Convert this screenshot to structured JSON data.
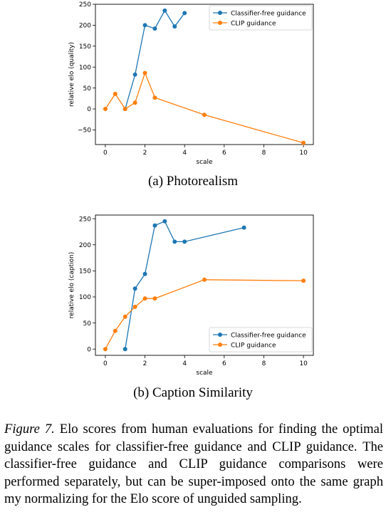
{
  "charts_meta": {
    "colors": {
      "classifier_free": "#1f77b4",
      "clip": "#ff7f0e"
    }
  },
  "chart_data": [
    {
      "type": "line",
      "title": "",
      "xlabel": "scale",
      "ylabel": "relative elo (quality)",
      "xlim": [
        -0.5,
        10.5
      ],
      "ylim": [
        -85,
        250
      ],
      "xticks": [
        0,
        2,
        4,
        6,
        8,
        10
      ],
      "yticks": [
        -50,
        0,
        50,
        100,
        150,
        200,
        250
      ],
      "grid": false,
      "legend_position": "top-right",
      "series": [
        {
          "name": "Classifier-free guidance",
          "color": "#1f77b4",
          "x": [
            1,
            1.5,
            2,
            2.5,
            3,
            3.5,
            4
          ],
          "y": [
            0,
            82,
            200,
            192,
            235,
            197,
            229
          ]
        },
        {
          "name": "CLIP guidance",
          "color": "#ff7f0e",
          "x": [
            0,
            0.5,
            1,
            1.5,
            2,
            2.5,
            5,
            10
          ],
          "y": [
            0,
            36,
            0,
            15,
            86,
            27,
            -14,
            -81
          ]
        }
      ]
    },
    {
      "type": "line",
      "title": "",
      "xlabel": "scale",
      "ylabel": "relative elo (caption)",
      "xlim": [
        -0.5,
        10.5
      ],
      "ylim": [
        -12,
        257
      ],
      "xticks": [
        0,
        2,
        4,
        6,
        8,
        10
      ],
      "yticks": [
        0,
        50,
        100,
        150,
        200,
        250
      ],
      "grid": false,
      "legend_position": "bottom-right",
      "series": [
        {
          "name": "Classifier-free guidance",
          "color": "#1f77b4",
          "x": [
            1,
            1.5,
            2,
            2.5,
            3,
            3.5,
            4,
            7
          ],
          "y": [
            0,
            116,
            144,
            237,
            245,
            206,
            206,
            233
          ]
        },
        {
          "name": "CLIP guidance",
          "color": "#ff7f0e",
          "x": [
            0,
            0.5,
            1,
            1.5,
            2,
            2.5,
            5,
            10
          ],
          "y": [
            0,
            35,
            62,
            81,
            97,
            97,
            133,
            131
          ]
        }
      ]
    }
  ],
  "subcaptions": {
    "a": "(a)  Photorealism",
    "b": "(b)  Caption Similarity"
  },
  "caption": {
    "label": "Figure 7.",
    "text": " Elo scores from human evaluations for finding the optimal guidance scales for classifier-free guidance and CLIP guidance. The classifier-free guidance and CLIP guidance comparisons were performed separately, but can be super-imposed onto the same graph my normalizing for the Elo score of unguided sampling."
  }
}
